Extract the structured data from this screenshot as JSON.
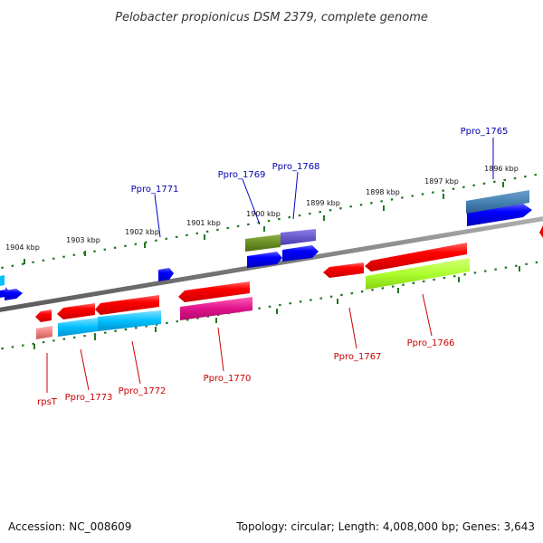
{
  "title": "Pelobacter propionicus DSM 2379, complete genome",
  "accession_text": "Accession: NC_008609",
  "topology_text": "Topology: circular; Length: 4,008,000 bp; Genes: 3,643",
  "ticks": [
    "1904 kbp",
    "1903 kbp",
    "1902 kbp",
    "1901 kbp",
    "1900 kbp",
    "1899 kbp",
    "1898 kbp",
    "1897 kbp",
    "1896 kbp"
  ],
  "genes": [
    {
      "label": "Ppro_1765",
      "strand": "+",
      "color": "#0000cc"
    },
    {
      "label": "Ppro_1766",
      "strand": "-",
      "color": "#cc0000"
    },
    {
      "label": "Ppro_1767",
      "strand": "-",
      "color": "#cc0000"
    },
    {
      "label": "Ppro_1768",
      "strand": "+",
      "color": "#0000cc"
    },
    {
      "label": "Ppro_1769",
      "strand": "+",
      "color": "#0000cc"
    },
    {
      "label": "Ppro_1770",
      "strand": "-",
      "color": "#cc0000"
    },
    {
      "label": "Ppro_1771",
      "strand": "+",
      "color": "#0000cc"
    },
    {
      "label": "Ppro_1772",
      "strand": "-",
      "color": "#cc0000"
    },
    {
      "label": "Ppro_1773",
      "strand": "-",
      "color": "#cc0000"
    },
    {
      "label": "rpsT",
      "strand": "-",
      "color": "#cc0000"
    }
  ],
  "colors": {
    "forward_gene": "#0000ee",
    "reverse_gene": "#ee0000",
    "backbone": "#808080",
    "tick_mark": "#227722",
    "blue_feature": "#4a7fb0",
    "olive_feature": "#6b8e23",
    "purple_feature": "#6a5acd",
    "green_feature": "#adff2f",
    "magenta_feature": "#e0138c",
    "cyan_feature": "#00bfff",
    "salmon_feature": "#f08080"
  }
}
